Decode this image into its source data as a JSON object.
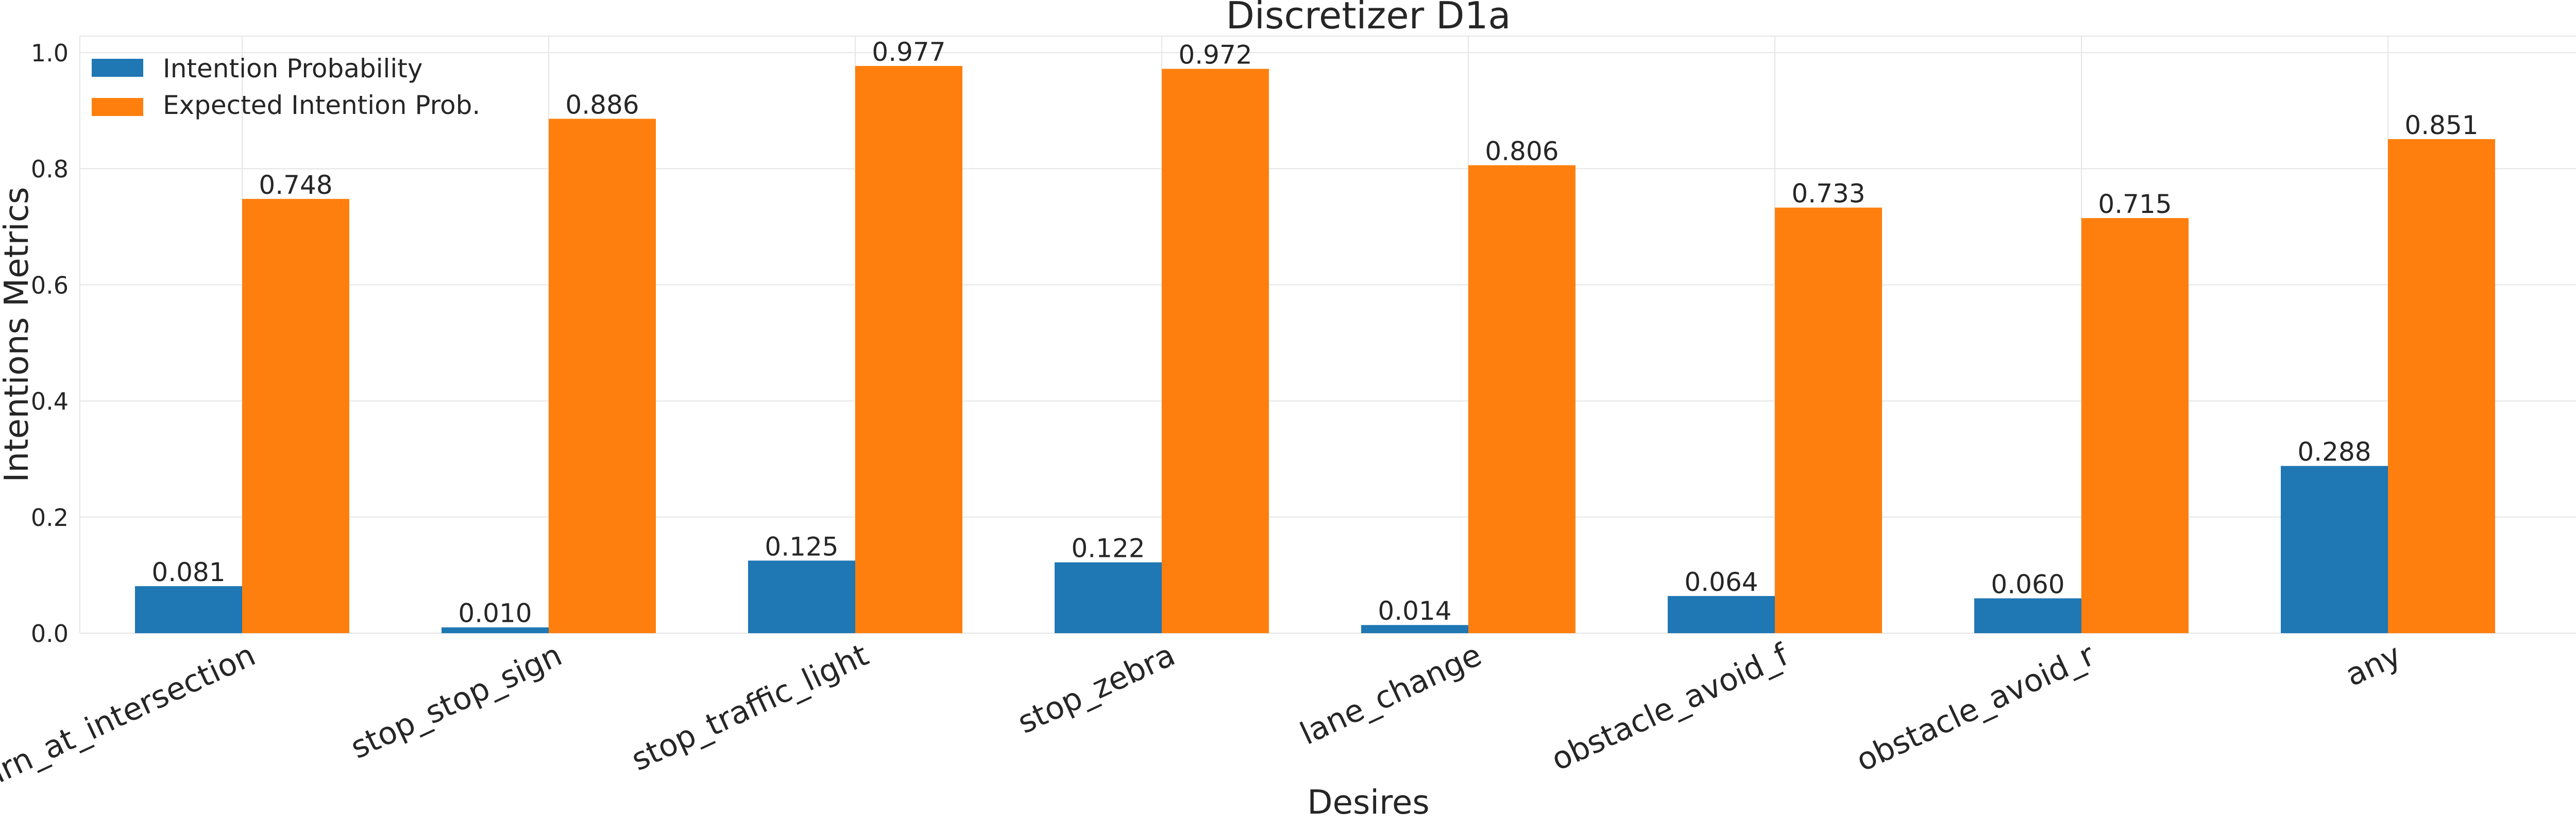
{
  "chart_data": {
    "type": "bar",
    "title": "Discretizer D1a",
    "xlabel": "Desires",
    "ylabel": "Intentions Metrics",
    "categories": [
      "turn_at_intersection",
      "stop_stop_sign",
      "stop_traffic_light",
      "stop_zebra",
      "lane_change",
      "obstacle_avoid_f",
      "obstacle_avoid_r",
      "any"
    ],
    "series": [
      {
        "name": "Intention Probability",
        "color": "#1f77b4",
        "values": [
          0.081,
          0.01,
          0.125,
          0.122,
          0.014,
          0.064,
          0.06,
          0.288
        ]
      },
      {
        "name": "Expected Intention Prob.",
        "color": "#ff7f0e",
        "values": [
          0.748,
          0.886,
          0.977,
          0.972,
          0.806,
          0.733,
          0.715,
          0.851
        ]
      }
    ],
    "value_labels": [
      [
        "0.081",
        "0.010",
        "0.125",
        "0.122",
        "0.014",
        "0.064",
        "0.060",
        "0.288"
      ],
      [
        "0.748",
        "0.886",
        "0.977",
        "0.972",
        "0.806",
        "0.733",
        "0.715",
        "0.851"
      ]
    ],
    "yticks": [
      "0.0",
      "0.2",
      "0.4",
      "0.6",
      "0.8",
      "1.0"
    ],
    "ylim": [
      0,
      1.026
    ],
    "grid": true,
    "legend_position": "top-left"
  }
}
